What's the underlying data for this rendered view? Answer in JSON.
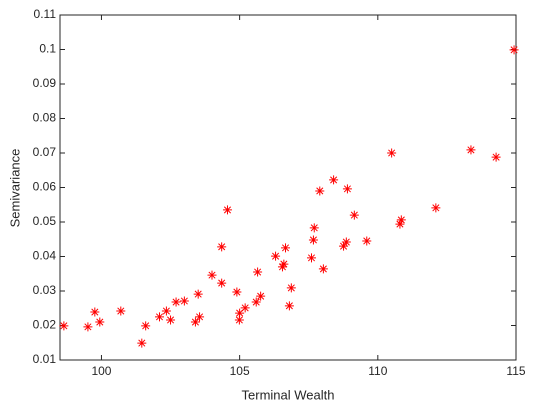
{
  "chart_data": {
    "type": "scatter",
    "x_label": "Terminal Wealth",
    "y_label": "Semivariance",
    "marker": "*",
    "color": "#ff0000",
    "xlim": [
      98.5,
      115
    ],
    "xticks": [
      100,
      105,
      110,
      115
    ],
    "ylim": [
      0.01,
      0.11
    ],
    "yticks": [
      0.01,
      0.02,
      0.03,
      0.04,
      0.05,
      0.06,
      0.07,
      0.08,
      0.09,
      0.1,
      0.11
    ],
    "x": [
      98.64,
      99.51,
      99.76,
      99.94,
      100.7,
      101.46,
      101.6,
      102.1,
      102.35,
      102.5,
      102.7,
      103.0,
      103.4,
      103.55,
      103.5,
      104.0,
      104.35,
      104.35,
      104.56,
      104.9,
      104.99,
      105.0,
      105.2,
      105.6,
      105.65,
      105.76,
      106.3,
      106.55,
      106.6,
      106.66,
      106.8,
      106.87,
      107.6,
      107.67,
      107.7,
      107.9,
      108.03,
      108.4,
      108.76,
      108.86,
      108.9,
      109.15,
      109.6,
      110.5,
      110.8,
      110.85,
      112.1,
      113.37,
      114.28,
      114.93
    ],
    "y": [
      0.0199,
      0.0196,
      0.0239,
      0.021,
      0.0242,
      0.0149,
      0.0199,
      0.0225,
      0.0242,
      0.0216,
      0.0268,
      0.0271,
      0.021,
      0.0225,
      0.0291,
      0.0346,
      0.0323,
      0.0428,
      0.0535,
      0.0297,
      0.0216,
      0.0236,
      0.0251,
      0.0268,
      0.0355,
      0.0285,
      0.0401,
      0.037,
      0.0378,
      0.0425,
      0.0257,
      0.0309,
      0.0396,
      0.0448,
      0.0483,
      0.059,
      0.0364,
      0.0622,
      0.043,
      0.0442,
      0.0596,
      0.052,
      0.0445,
      0.07,
      0.0494,
      0.0506,
      0.0541,
      0.0709,
      0.0688,
      0.0999
    ]
  }
}
